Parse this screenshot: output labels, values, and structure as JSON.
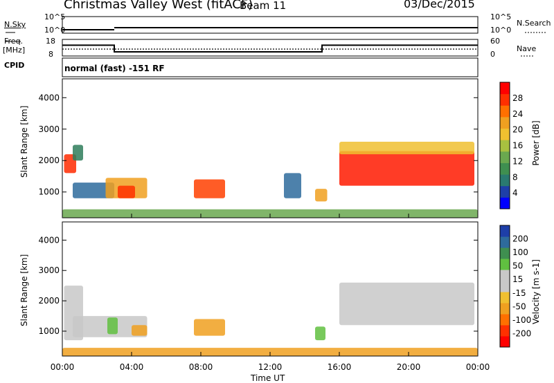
{
  "header": {
    "station": "Christmas Valley West (fitACF)",
    "beam": "Beam 11",
    "date": "03/Dec/2015"
  },
  "status_strip": {
    "nsky_label": "N.Sky",
    "nsky_ticks": [
      "10^5",
      "10^0"
    ],
    "nsearch_label": "N.Search",
    "nsearch_ticks": [
      "10^5",
      "10^0"
    ],
    "freq_label": "Freq.",
    "freq_unit": "[MHz]",
    "freq_ticks": [
      "18",
      "8"
    ],
    "nave_label": "Nave",
    "nave_ticks": [
      "60",
      "0"
    ],
    "cpid_label": "CPID",
    "cpid_text": "normal (fast) -151 RF",
    "freq_steps": [
      [
        0,
        14.5
      ],
      [
        3,
        10.5
      ],
      [
        15,
        14.5
      ],
      [
        24,
        14.5
      ]
    ]
  },
  "chart_data": [
    {
      "type": "heatmap",
      "name": "power",
      "ylabel": "Slant Range [km]",
      "yticks": [
        "1000",
        "2000",
        "3000",
        "4000"
      ],
      "ylim": [
        180,
        4600
      ],
      "colorbar_label": "Power [dB]",
      "colorbar_ticks": [
        "28",
        "24",
        "20",
        "16",
        "12",
        "8",
        "4"
      ],
      "colorbar_colors": [
        "#0000ff",
        "#1e3fa8",
        "#2a7a70",
        "#3f8f50",
        "#6aa84f",
        "#a8c040",
        "#f0c030",
        "#f0a020",
        "#ff7000",
        "#ff3000",
        "#ff0000"
      ],
      "echo_regions": [
        {
          "t0": 0.1,
          "t1": 0.8,
          "r0": 1600,
          "r1": 2200,
          "color": "#ff2a00"
        },
        {
          "t0": 0.6,
          "t1": 1.2,
          "r0": 2000,
          "r1": 2500,
          "color": "#2e7d5a"
        },
        {
          "t0": 0.6,
          "t1": 3.0,
          "r0": 800,
          "r1": 1300,
          "color": "#2e6b9c"
        },
        {
          "t0": 2.5,
          "t1": 4.9,
          "r0": 800,
          "r1": 1450,
          "color": "#f0a020"
        },
        {
          "t0": 3.2,
          "t1": 4.2,
          "r0": 800,
          "r1": 1200,
          "color": "#ff3000"
        },
        {
          "t0": 7.6,
          "t1": 9.4,
          "r0": 800,
          "r1": 1400,
          "color": "#ff4000"
        },
        {
          "t0": 12.8,
          "t1": 13.8,
          "r0": 800,
          "r1": 1600,
          "color": "#2e6b9c"
        },
        {
          "t0": 14.6,
          "t1": 15.3,
          "r0": 700,
          "r1": 1100,
          "color": "#f0a020"
        },
        {
          "t0": 16.0,
          "t1": 23.8,
          "r0": 1200,
          "r1": 2300,
          "color": "#ff1a00"
        },
        {
          "t0": 16.0,
          "t1": 23.8,
          "r0": 2200,
          "r1": 2600,
          "color": "#f0c030"
        },
        {
          "t0": 0.0,
          "t1": 24.0,
          "r0": 180,
          "r1": 450,
          "color": "#6aa84f"
        }
      ]
    },
    {
      "type": "heatmap",
      "name": "velocity",
      "ylabel": "Slant Range [km]",
      "yticks": [
        "1000",
        "2000",
        "3000",
        "4000"
      ],
      "ylim": [
        180,
        4600
      ],
      "colorbar_label": "Velocity [m s-1]",
      "colorbar_ticks": [
        "200",
        "100",
        "50",
        "15",
        "-15",
        "-50",
        "-100",
        "-200"
      ],
      "colorbar_colors": [
        "#ff0000",
        "#ff3000",
        "#ff7000",
        "#f0a020",
        "#f0c030",
        "#c8c8c8",
        "#c8c8c8",
        "#60c040",
        "#3f8f50",
        "#2e6b9c",
        "#1e3fa8"
      ],
      "echo_regions": [
        {
          "t0": 0.1,
          "t1": 1.2,
          "r0": 700,
          "r1": 2500,
          "color": "#c8c8c8"
        },
        {
          "t0": 0.6,
          "t1": 4.9,
          "r0": 800,
          "r1": 1500,
          "color": "#c8c8c8"
        },
        {
          "t0": 2.6,
          "t1": 3.2,
          "r0": 900,
          "r1": 1450,
          "color": "#60c040"
        },
        {
          "t0": 4.0,
          "t1": 4.9,
          "r0": 850,
          "r1": 1200,
          "color": "#f0a020"
        },
        {
          "t0": 7.6,
          "t1": 9.4,
          "r0": 850,
          "r1": 1400,
          "color": "#f0a020"
        },
        {
          "t0": 14.6,
          "t1": 15.2,
          "r0": 700,
          "r1": 1150,
          "color": "#60c040"
        },
        {
          "t0": 16.0,
          "t1": 23.8,
          "r0": 1200,
          "r1": 2600,
          "color": "#c8c8c8"
        },
        {
          "t0": 0.0,
          "t1": 24.0,
          "r0": 180,
          "r1": 450,
          "color": "#f0a020"
        }
      ]
    }
  ],
  "x_axis": {
    "label": "Time UT",
    "ticks": [
      "00:00",
      "04:00",
      "08:00",
      "12:00",
      "16:00",
      "20:00",
      "00:00"
    ],
    "xlim": [
      0,
      24
    ]
  }
}
